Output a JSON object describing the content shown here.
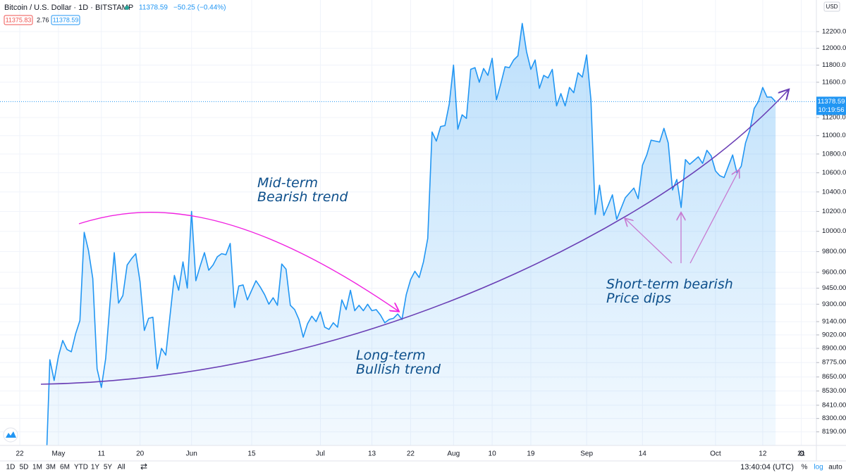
{
  "chart_data": {
    "type": "area",
    "title": "Bitcoin / U.S. Dollar · 1D · BITSTAMP",
    "last_price": 11378.59,
    "change": "−50.25 (−0.44%)",
    "bid": 11375.83,
    "spread": 2.76,
    "countdown": "10:19:56",
    "currency": "USD",
    "color": "#2196f3",
    "log_scale": true,
    "grid": true,
    "categories": [
      null,
      null,
      null,
      null,
      "22",
      null,
      null,
      null,
      null,
      null,
      null,
      null,
      null,
      "May",
      null,
      null,
      null,
      null,
      null,
      null,
      null,
      null,
      null,
      "11",
      null,
      null,
      null,
      null,
      null,
      null,
      null,
      null,
      "20",
      null,
      null,
      null,
      null,
      null,
      null,
      null,
      null,
      null,
      null,
      null,
      "Jun",
      null,
      null,
      null,
      null,
      null,
      null,
      null,
      null,
      null,
      null,
      null,
      null,
      null,
      "15",
      null,
      null,
      null,
      null,
      null,
      null,
      null,
      null,
      null,
      null,
      null,
      null,
      null,
      null,
      null,
      "Jul",
      null,
      null,
      null,
      null,
      null,
      null,
      null,
      null,
      null,
      null,
      null,
      "13",
      null,
      null,
      null,
      null,
      null,
      null,
      null,
      null,
      "22",
      null,
      null,
      null,
      null,
      null,
      null,
      null,
      null,
      null,
      "Aug",
      null,
      null,
      null,
      null,
      null,
      null,
      null,
      null,
      "10",
      null,
      null,
      null,
      null,
      null,
      null,
      null,
      null,
      "19",
      null,
      null,
      null,
      null,
      null,
      null,
      null,
      null,
      null,
      null,
      null,
      null,
      "Sep",
      null,
      null,
      null,
      null,
      null,
      null,
      null,
      null,
      null,
      null,
      null,
      null,
      "14",
      null,
      null,
      null,
      null,
      null,
      null,
      null,
      null,
      null,
      null,
      null,
      null,
      null,
      null,
      null,
      null,
      "Oct",
      null,
      null,
      null,
      null,
      null,
      null,
      null,
      null,
      null,
      null,
      "12",
      null,
      null,
      null,
      null,
      null,
      null,
      null,
      null,
      "21",
      null,
      null,
      null
    ],
    "values": [
      null,
      null,
      null,
      null,
      null,
      null,
      null,
      null,
      null,
      null,
      7770,
      8800,
      8620,
      8830,
      8970,
      8890,
      8870,
      9030,
      9150,
      9990,
      9810,
      9540,
      8720,
      8560,
      8810,
      9310,
      9790,
      9310,
      9380,
      9670,
      9730,
      9780,
      9510,
      9060,
      9170,
      9180,
      8720,
      8900,
      8840,
      9200,
      9570,
      9430,
      9700,
      9450,
      10200,
      9520,
      9660,
      9790,
      9620,
      9670,
      9750,
      9780,
      9770,
      9880,
      9270,
      9470,
      9480,
      9340,
      9430,
      9520,
      9460,
      9390,
      9300,
      9360,
      9290,
      9680,
      9630,
      9290,
      9250,
      9160,
      9000,
      9120,
      9190,
      9140,
      9230,
      9090,
      9070,
      9130,
      9090,
      9340,
      9250,
      9430,
      9240,
      9290,
      9240,
      9300,
      9240,
      9250,
      9200,
      9130,
      9160,
      9170,
      9210,
      9160,
      9390,
      9530,
      9610,
      9550,
      9700,
      9930,
      11040,
      10940,
      11100,
      11110,
      11350,
      11800,
      11070,
      11230,
      11190,
      11750,
      11770,
      11600,
      11760,
      11680,
      11880,
      11400,
      11580,
      11780,
      11770,
      11860,
      11910,
      12300,
      11960,
      11750,
      11860,
      11530,
      11680,
      11650,
      11750,
      11330,
      11470,
      11330,
      11540,
      11480,
      11710,
      11660,
      11920,
      11400,
      10170,
      10470,
      10160,
      10260,
      10370,
      10120,
      10230,
      10340,
      10390,
      10440,
      10330,
      10680,
      10790,
      10950,
      10940,
      10930,
      11080,
      10920,
      10420,
      10530,
      10240,
      10740,
      10690,
      10730,
      10770,
      10700,
      10840,
      10780,
      10620,
      10570,
      10550,
      10670,
      10790,
      10600,
      10670,
      10920,
      11060,
      11300,
      11380,
      11540,
      11430,
      11430,
      11378.59,
      null,
      null,
      null,
      null,
      null,
      null,
      null,
      null,
      null
    ],
    "ylim": [
      8080,
      12590
    ],
    "yticks": [
      {
        "value": 8190,
        "label": "8190.00"
      },
      {
        "value": 8300,
        "label": "8300.00"
      },
      {
        "value": 8410,
        "label": "8410.00"
      },
      {
        "value": 8530,
        "label": "8530.00"
      },
      {
        "value": 8650,
        "label": "8650.00"
      },
      {
        "value": 8775,
        "label": "8775.00"
      },
      {
        "value": 8900,
        "label": "8900.00"
      },
      {
        "value": 9020,
        "label": "9020.00"
      },
      {
        "value": 9140,
        "label": "9140.00"
      },
      {
        "value": 9300,
        "label": "9300.00"
      },
      {
        "value": 9450,
        "label": "9450.00"
      },
      {
        "value": 9600,
        "label": "9600.00"
      },
      {
        "value": 9800,
        "label": "9800.00"
      },
      {
        "value": 10000,
        "label": "10000.00"
      },
      {
        "value": 10200,
        "label": "10200.00"
      },
      {
        "value": 10400,
        "label": "10400.00"
      },
      {
        "value": 10600,
        "label": "10600.00"
      },
      {
        "value": 10800,
        "label": "10800.00"
      },
      {
        "value": 11000,
        "label": "11000.00"
      },
      {
        "value": 11200,
        "label": "11200.00"
      },
      {
        "value": 11600,
        "label": "11600.00"
      },
      {
        "value": 11800,
        "label": "11800.00"
      },
      {
        "value": 12000,
        "label": "12000.00"
      },
      {
        "value": 12200,
        "label": "12200.00"
      }
    ],
    "annotations": [
      {
        "lines": [
          "Mid-term",
          "Bearish trend"
        ]
      },
      {
        "lines": [
          "Long-term",
          "Bullish trend"
        ]
      },
      {
        "lines": [
          "Short-term bearish",
          "Price dips"
        ]
      }
    ],
    "ranges": [
      "1D",
      "5D",
      "1M",
      "3M",
      "6M",
      "YTD",
      "1Y",
      "5Y",
      "All"
    ],
    "clock": "13:40:04 (UTC)",
    "scale_buttons": [
      "%",
      "log",
      "auto"
    ]
  }
}
